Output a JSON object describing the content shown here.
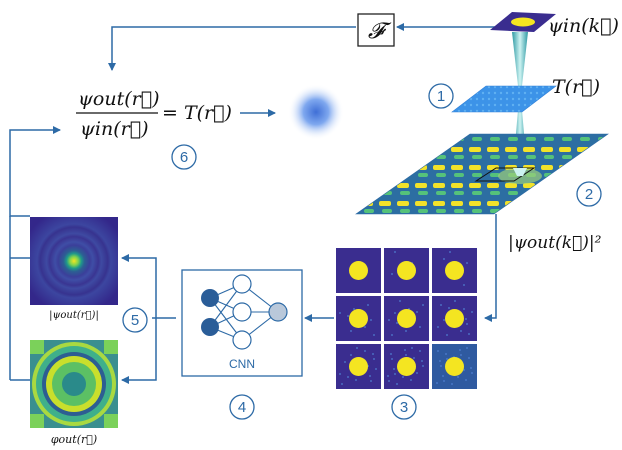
{
  "equation": {
    "numerator": "ψout(r⃗)",
    "denominator": "ψin(r⃗)",
    "rhs": "= T(r⃗)"
  },
  "labels": {
    "fourier": "𝓕",
    "psi_in_k": "ψin(k⃗)",
    "T_r": "T(r⃗)",
    "psi_out_k_sq": "|ψout(k⃗)|²",
    "cnn": "CNN",
    "amp_caption": "|ψout(r⃗)|",
    "phase_caption": "φout(r⃗)"
  },
  "steps": [
    "1",
    "2",
    "3",
    "4",
    "5",
    "6"
  ],
  "colors": {
    "arrow": "#2d6aa6",
    "accent": "#2d6aa6",
    "node_dark": "#2a5d98",
    "node_light": "#b9c8da",
    "viridis_dark": "#3a2d8f",
    "viridis_yellow": "#f4e521"
  }
}
